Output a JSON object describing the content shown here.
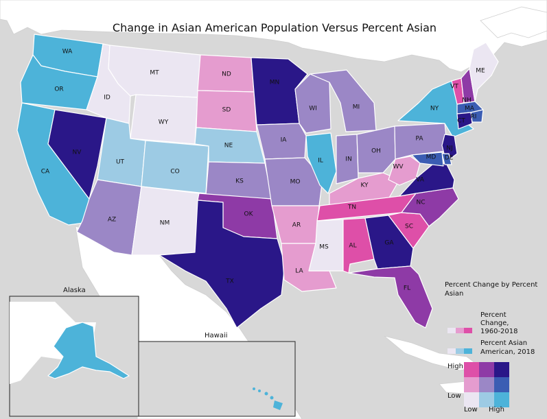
{
  "title": "Change in Asian American Population Versus Percent Asian",
  "insets": {
    "alaska": "Alaska",
    "hawaii": "Hawaii"
  },
  "legend": {
    "heading": "Percent Change by Percent Asian",
    "change_label": "Percent Change, 1960-2018",
    "asian_label": "Percent Asian American, 2018",
    "high_y": "High",
    "low_y": "Low",
    "low_x": "Low",
    "high_x": "High"
  },
  "colors": {
    "pink_low": "#ebe6f2",
    "pink_mid": "#e59ccf",
    "pink_high": "#de4fa8",
    "blue_low": "#ebe6f2",
    "blue_mid": "#9dcbe4",
    "blue_high": "#4db3d9",
    "grid": [
      [
        "#de4fa8",
        "#8e3aa6",
        "#2a1788"
      ],
      [
        "#e59ccf",
        "#9b87c6",
        "#3b5db3"
      ],
      [
        "#ebe6f2",
        "#9dcbe4",
        "#4db3d9"
      ]
    ],
    "land": "#ffffff",
    "water": "#d8d8d8"
  },
  "states": [
    {
      "code": "WA",
      "cls": "blue_high"
    },
    {
      "code": "OR",
      "cls": "blue_high"
    },
    {
      "code": "CA",
      "cls": "blue_high"
    },
    {
      "code": "NV",
      "cls": "high_high"
    },
    {
      "code": "ID",
      "cls": "low_low"
    },
    {
      "code": "MT",
      "cls": "low_low"
    },
    {
      "code": "WY",
      "cls": "low_low"
    },
    {
      "code": "UT",
      "cls": "low_mid"
    },
    {
      "code": "CO",
      "cls": "low_mid"
    },
    {
      "code": "AZ",
      "cls": "mid_mid"
    },
    {
      "code": "NM",
      "cls": "low_low"
    },
    {
      "code": "ND",
      "cls": "mid_low"
    },
    {
      "code": "SD",
      "cls": "mid_low"
    },
    {
      "code": "NE",
      "cls": "low_mid"
    },
    {
      "code": "KS",
      "cls": "mid_mid"
    },
    {
      "code": "OK",
      "cls": "high_mid"
    },
    {
      "code": "TX",
      "cls": "high_high"
    },
    {
      "code": "MN",
      "cls": "high_high"
    },
    {
      "code": "IA",
      "cls": "mid_mid"
    },
    {
      "code": "MO",
      "cls": "mid_mid"
    },
    {
      "code": "AR",
      "cls": "mid_low"
    },
    {
      "code": "LA",
      "cls": "mid_low"
    },
    {
      "code": "WI",
      "cls": "mid_mid"
    },
    {
      "code": "IL",
      "cls": "blue_high"
    },
    {
      "code": "MI",
      "cls": "mid_mid"
    },
    {
      "code": "IN",
      "cls": "mid_mid"
    },
    {
      "code": "OH",
      "cls": "mid_mid"
    },
    {
      "code": "KY",
      "cls": "mid_low"
    },
    {
      "code": "TN",
      "cls": "high_low"
    },
    {
      "code": "MS",
      "cls": "low_low"
    },
    {
      "code": "AL",
      "cls": "high_low"
    },
    {
      "code": "GA",
      "cls": "high_high"
    },
    {
      "code": "FL",
      "cls": "high_mid"
    },
    {
      "code": "SC",
      "cls": "high_low"
    },
    {
      "code": "NC",
      "cls": "high_mid"
    },
    {
      "code": "VA",
      "cls": "high_high"
    },
    {
      "code": "WV",
      "cls": "mid_low"
    },
    {
      "code": "PA",
      "cls": "mid_mid"
    },
    {
      "code": "NY",
      "cls": "blue_high"
    },
    {
      "code": "VT",
      "cls": "high_low"
    },
    {
      "code": "NH",
      "cls": "high_mid"
    },
    {
      "code": "ME",
      "cls": "low_low"
    },
    {
      "code": "MA",
      "cls": "blue_dark"
    },
    {
      "code": "RI",
      "cls": "blue_dark"
    },
    {
      "code": "CT",
      "cls": "high_high"
    },
    {
      "code": "NJ",
      "cls": "high_high"
    },
    {
      "code": "DE",
      "cls": "blue_dark"
    },
    {
      "code": "MD",
      "cls": "blue_dark"
    }
  ]
}
